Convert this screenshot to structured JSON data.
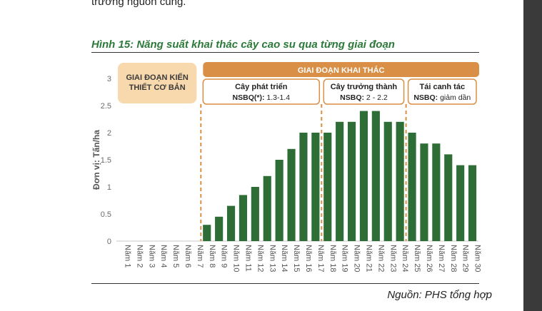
{
  "page": {
    "top_text": "trưởng nguồn cung.",
    "figure_title": "Hình 15: Năng suất khai thác cây cao su qua từng giai đoạn",
    "source": "Nguồn: PHS tổng hợp"
  },
  "chart_data": {
    "type": "bar",
    "ylabel": "Đơn vị: Tấn/ha",
    "ylim": [
      0,
      3
    ],
    "yticks": [
      "0",
      "0.5",
      "1",
      "1.5",
      "2",
      "2.5",
      "3"
    ],
    "categories": [
      "Năm 1",
      "Năm 2",
      "Năm 3",
      "Năm 4",
      "Năm 5",
      "Năm 6",
      "Năm 7",
      "Năm 8",
      "Năm 9",
      "Năm 10",
      "Năm 11",
      "Năm 12",
      "Năm 13",
      "Năm 14",
      "Năm 15",
      "Năm 16",
      "Năm 17",
      "Năm 18",
      "Năm 19",
      "Năm 20",
      "Năm 21",
      "Năm 22",
      "Năm 23",
      "Năm 24",
      "Năm 25",
      "Năm 26",
      "Năm 27",
      "Năm 28",
      "Năm 29",
      "Năm 30"
    ],
    "values": [
      0,
      0,
      0,
      0,
      0,
      0,
      0,
      0.3,
      0.45,
      0.65,
      0.85,
      1.0,
      1.2,
      1.5,
      1.7,
      2.0,
      2.0,
      2.0,
      2.2,
      2.2,
      2.4,
      2.4,
      2.2,
      2.2,
      2.0,
      1.8,
      1.8,
      1.6,
      1.4,
      1.4
    ],
    "bar_color": "#2e6e36",
    "phase_box_color": "#f8d9ad",
    "phase_header_color": "#d98f46",
    "annotations": {
      "construction_phase": [
        "GIAI ĐOẠN KIẾN",
        "THIẾT CƠ BẢN"
      ],
      "exploitation_phase": "GIAI ĐOẠN KHAI THÁC",
      "sub_phases": [
        {
          "name": "Cây phát triển",
          "nsbq": "NSBQ(*): 1.3-1.4"
        },
        {
          "name": "Cây trưởng thành",
          "nsbq": "NSBQ: 2 - 2.2"
        },
        {
          "name": "Tái canh tác",
          "nsbq": "NSBQ: giảm dần"
        }
      ]
    }
  }
}
